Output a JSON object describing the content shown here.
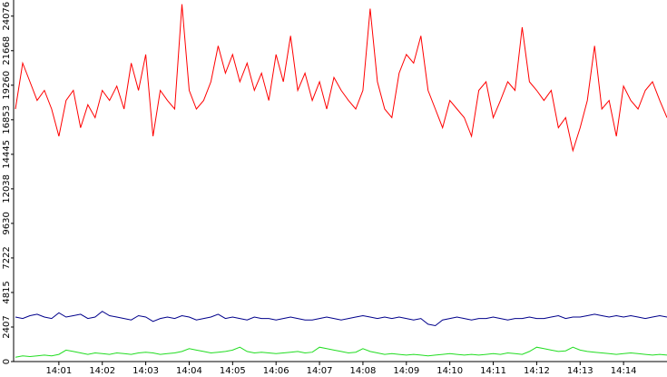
{
  "chart_data": {
    "type": "line",
    "categories": [
      null,
      null,
      null,
      null,
      null,
      null,
      "14:01",
      null,
      null,
      null,
      null,
      null,
      "14:02",
      null,
      null,
      null,
      null,
      null,
      "14:03",
      null,
      null,
      null,
      null,
      null,
      "14:04",
      null,
      null,
      null,
      null,
      null,
      "14:05",
      null,
      null,
      null,
      null,
      null,
      "14:06",
      null,
      null,
      null,
      null,
      null,
      "14:07",
      null,
      null,
      null,
      null,
      null,
      "14:08",
      null,
      null,
      null,
      null,
      null,
      "14:09",
      null,
      null,
      null,
      null,
      null,
      "14:10",
      null,
      null,
      null,
      null,
      null,
      "14:11",
      null,
      null,
      null,
      null,
      null,
      "14:12",
      null,
      null,
      null,
      null,
      null,
      "14:13",
      null,
      null,
      null,
      null,
      null,
      "14:14",
      null,
      null,
      null,
      null,
      null,
      null
    ],
    "series": [
      {
        "color": "#ff0000",
        "values": [
          17600,
          20800,
          19500,
          18200,
          18900,
          17600,
          15700,
          18200,
          18900,
          16300,
          17900,
          17000,
          18900,
          18200,
          19200,
          17600,
          20800,
          18900,
          21400,
          15700,
          18900,
          18200,
          17600,
          24900,
          18900,
          17600,
          18200,
          19500,
          22000,
          20100,
          21400,
          19500,
          20800,
          18900,
          20100,
          18200,
          21400,
          19500,
          22700,
          18900,
          20100,
          18200,
          19500,
          17600,
          19800,
          18900,
          18200,
          17600,
          18900,
          24600,
          19500,
          17600,
          17000,
          20100,
          21400,
          20800,
          22700,
          18900,
          17600,
          16300,
          18200,
          17600,
          17000,
          15700,
          18900,
          19500,
          17000,
          18200,
          19500,
          18900,
          23300,
          19500,
          18900,
          18200,
          18900,
          16300,
          17000,
          14700,
          16300,
          18200,
          22000,
          17600,
          18200,
          15700,
          19200,
          18200,
          17600,
          18900,
          19500,
          18200,
          17000
        ]
      },
      {
        "color": "#00008b",
        "values": [
          3100,
          3000,
          3200,
          3300,
          3100,
          3000,
          3400,
          3100,
          3200,
          3300,
          3000,
          3100,
          3500,
          3200,
          3100,
          3000,
          2900,
          3200,
          3100,
          2800,
          3000,
          3100,
          3000,
          3200,
          3100,
          2900,
          3000,
          3100,
          3300,
          3000,
          3100,
          3000,
          2900,
          3100,
          3000,
          3000,
          2900,
          3000,
          3100,
          3000,
          2900,
          2900,
          3000,
          3100,
          3000,
          2900,
          3000,
          3100,
          3200,
          3100,
          3000,
          3100,
          3000,
          3100,
          3000,
          2900,
          3000,
          2600,
          2500,
          2900,
          3000,
          3100,
          3000,
          2900,
          3000,
          3000,
          3100,
          3000,
          2900,
          3000,
          3000,
          3100,
          3000,
          3000,
          3100,
          3200,
          3000,
          3100,
          3100,
          3200,
          3300,
          3200,
          3100,
          3200,
          3100,
          3200,
          3100,
          3000,
          3100,
          3200,
          3100
        ]
      },
      {
        "color": "#22dd22",
        "values": [
          300,
          400,
          350,
          400,
          450,
          400,
          500,
          800,
          700,
          600,
          500,
          600,
          550,
          500,
          600,
          550,
          500,
          600,
          650,
          600,
          500,
          550,
          600,
          700,
          900,
          800,
          700,
          600,
          650,
          700,
          800,
          1000,
          700,
          600,
          650,
          600,
          550,
          600,
          650,
          700,
          600,
          650,
          1000,
          900,
          800,
          700,
          600,
          650,
          900,
          700,
          600,
          500,
          550,
          500,
          450,
          500,
          450,
          400,
          450,
          500,
          550,
          500,
          450,
          500,
          450,
          500,
          550,
          500,
          600,
          550,
          500,
          700,
          1000,
          900,
          800,
          700,
          750,
          1000,
          800,
          700,
          650,
          600,
          550,
          500,
          550,
          600,
          550,
          500,
          450,
          500,
          450
        ]
      }
    ],
    "ylim": [
      0,
      25200
    ],
    "yticks": [
      0,
      2407,
      4815,
      7222,
      9630,
      12038,
      14445,
      16853,
      19260,
      21668,
      24076
    ]
  }
}
